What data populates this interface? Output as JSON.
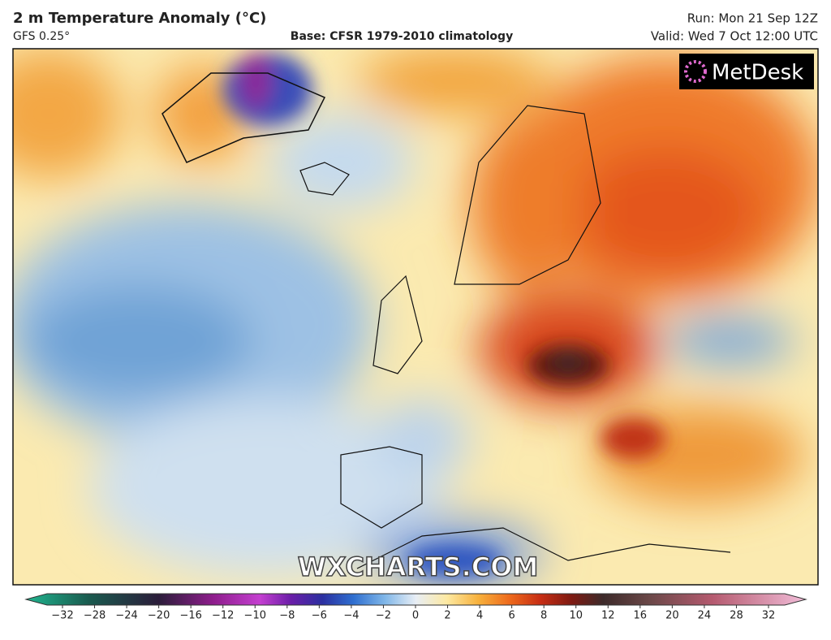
{
  "header": {
    "title": "2 m Temperature Anomaly (°C)",
    "model": "GFS 0.25°",
    "base": "Base: CFSR 1979-2010 climatology",
    "run": "Run: Mon 21 Sep 12Z",
    "valid": "Valid: Wed 7 Oct 12:00 UTC"
  },
  "map": {
    "logo": "MetDesk",
    "watermark": "WXCHARTS.COM"
  },
  "colorbar": {
    "ticks": [
      {
        "value": -32,
        "label": "−32"
      },
      {
        "value": -28,
        "label": "−28"
      },
      {
        "value": -24,
        "label": "−24"
      },
      {
        "value": -20,
        "label": "−20"
      },
      {
        "value": -16,
        "label": "−16"
      },
      {
        "value": -12,
        "label": "−12"
      },
      {
        "value": -10,
        "label": "−10"
      },
      {
        "value": -8,
        "label": "−8"
      },
      {
        "value": -6,
        "label": "−6"
      },
      {
        "value": -4,
        "label": "−4"
      },
      {
        "value": -2,
        "label": "−2"
      },
      0,
      2,
      4,
      6,
      8,
      10,
      12,
      16,
      20,
      24,
      28,
      32
    ]
  }
}
